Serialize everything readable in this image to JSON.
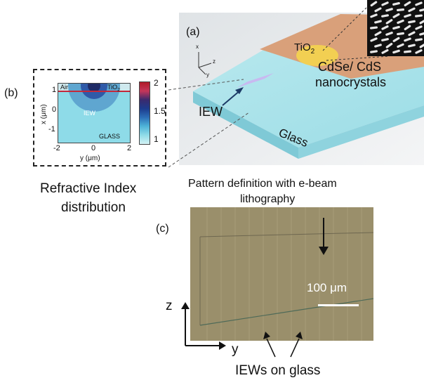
{
  "panel_a": {
    "label": "(a)",
    "tio2": "TiO",
    "tio2_sub": "2",
    "nanocrystals_line1": "CdSe/ CdS",
    "nanocrystals_line2": "nanocrystals",
    "iew": "IEW",
    "glass": "Glass",
    "axes": {
      "x": "x",
      "y": "y",
      "z": "z"
    }
  },
  "panel_b": {
    "label": "(b)",
    "air": "Air",
    "tio2": "TiO",
    "tio2_sub": "2",
    "iew": "IEW",
    "glass": "GLASS",
    "ylabel": "x (μm)",
    "xlabel": "y (μm)",
    "yticks": [
      "1",
      "0",
      "-1"
    ],
    "xticks": [
      "-2",
      "0",
      "2"
    ],
    "colorbar_ticks": [
      "2",
      "1.5",
      "1"
    ],
    "colorbar_colors": [
      "#b01a28",
      "#c4365a",
      "#3a2a6e",
      "#1d3c8e",
      "#2d6fb8",
      "#4fb4d8",
      "#90dce8",
      "#d4f2f4"
    ],
    "caption_line1": "Refractive Index",
    "caption_line2": "distribution"
  },
  "panel_c": {
    "label": "(c)",
    "title_line1": "Pattern definition with e-beam",
    "title_line2": "lithography",
    "scalebar": "100 μm",
    "axis_z": "z",
    "axis_y": "y",
    "caption": "IEWs on glass"
  }
}
